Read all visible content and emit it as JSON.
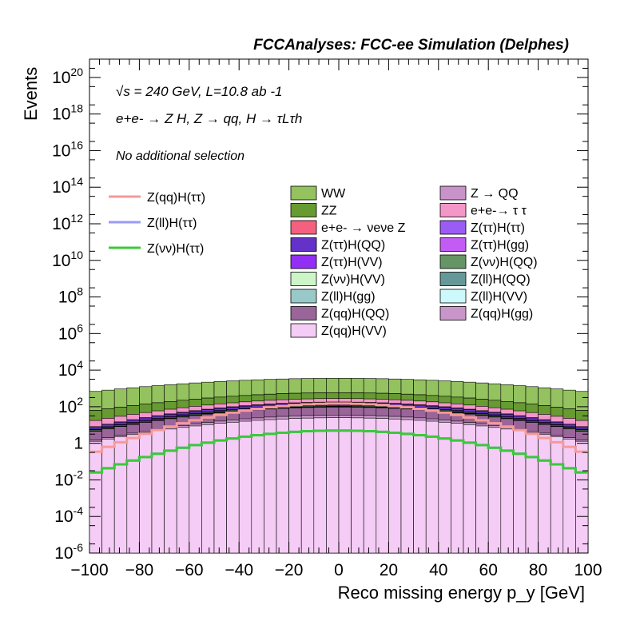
{
  "chart_data": {
    "type": "area",
    "title": "FCCAnalyses: FCC-ee Simulation (Delphes)",
    "annotations": {
      "energy_line": "√s = 240 GeV, L=10.8 ab -1",
      "process": "e+e- → Z H, Z → qq, H → τLτh",
      "selection": "No additional selection"
    },
    "xlabel": "Reco missing energy p_y [GeV]",
    "ylabel": "Events",
    "xlim": [
      -100,
      100
    ],
    "ylim": [
      1e-06,
      1e+21
    ],
    "yscale": "log",
    "stacked": true,
    "xticks": [
      "−100",
      "−80",
      "−60",
      "−40",
      "−20",
      "0",
      "20",
      "40",
      "60",
      "80",
      "100"
    ],
    "yticks": [
      "10^-6",
      "10^-4",
      "10^-2",
      "1",
      "10^2",
      "10^4",
      "10^6",
      "10^8",
      "10^10",
      "10^12",
      "10^14",
      "10^16",
      "10^18",
      "10^20"
    ],
    "legend_position": "middle",
    "backgrounds": [
      {
        "name": "WW",
        "color": "#93c25f",
        "peak": 3000
      },
      {
        "name": "Z → QQ",
        "color": "#c893c8",
        "peak": 5
      },
      {
        "name": "ZZ",
        "color": "#679b32",
        "peak": 300
      },
      {
        "name": "e+e-→ τ τ",
        "color": "#f596c8",
        "peak": 100
      },
      {
        "name": "e+e- → νeνe Z",
        "color": "#f5607e",
        "peak": 8
      },
      {
        "name": "Z(ττ)H(ττ)",
        "color": "#9a5cf5",
        "peak": 3
      },
      {
        "name": "Z(ττ)H(QQ)",
        "color": "#6432c8",
        "peak": 40
      },
      {
        "name": "Z(ττ)H(gg)",
        "color": "#c35cf5",
        "peak": 2
      },
      {
        "name": "Z(ττ)H(VV)",
        "color": "#932ff5",
        "peak": 10
      },
      {
        "name": "Z(νν)H(QQ)",
        "color": "#669565",
        "peak": 12
      },
      {
        "name": "Z(νν)H(VV)",
        "color": "#ccf5c8",
        "peak": 5
      },
      {
        "name": "Z(ll)H(QQ)",
        "color": "#679898",
        "peak": 4
      },
      {
        "name": "Z(ll)H(gg)",
        "color": "#99c8c8",
        "peak": 1
      },
      {
        "name": "Z(ll)H(VV)",
        "color": "#ccfafa",
        "peak": 1
      },
      {
        "name": "Z(qq)H(QQ)",
        "color": "#9a6599",
        "peak": 60
      },
      {
        "name": "Z(qq)H(gg)",
        "color": "#c896c8",
        "peak": 10
      },
      {
        "name": "Z(qq)H(VV)",
        "color": "#f5ccf5",
        "peak": 25
      }
    ],
    "signals": [
      {
        "name": "Z(qq)H(ττ)",
        "color": "#f59a9a",
        "peak": 150
      },
      {
        "name": "Z(ll)H(ττ)",
        "color": "#9a9af5",
        "peak": 5
      },
      {
        "name": "Z(νν)H(ττ)",
        "color": "#3cc83c",
        "peak": 5
      }
    ]
  }
}
